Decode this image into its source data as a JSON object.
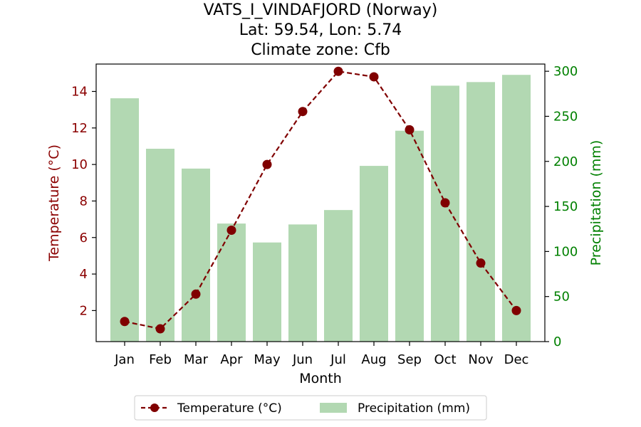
{
  "chart_data": {
    "type": "bar",
    "title_lines": [
      "VATS_I_VINDAFJORD (Norway)",
      "Lat: 59.54, Lon: 5.74",
      "Climate zone: Cfb"
    ],
    "xlabel": "Month",
    "ylabel_left": "Temperature (°C)",
    "ylabel_right": "Precipitation (mm)",
    "categories": [
      "Jan",
      "Feb",
      "Mar",
      "Apr",
      "May",
      "Jun",
      "Jul",
      "Aug",
      "Sep",
      "Oct",
      "Nov",
      "Dec"
    ],
    "series": [
      {
        "name": "Temperature (°C)",
        "type": "line",
        "axis": "left",
        "color": "#800000",
        "values": [
          1.4,
          1.0,
          2.9,
          6.4,
          10.0,
          12.9,
          15.1,
          14.8,
          11.9,
          7.9,
          4.6,
          2.0
        ]
      },
      {
        "name": "Precipitation (mm)",
        "type": "bar",
        "axis": "right",
        "color": "#b2d8b2",
        "values": [
          270,
          214,
          192,
          131,
          110,
          130,
          146,
          195,
          234,
          284,
          288,
          296
        ]
      }
    ],
    "ylim_left": [
      0.3,
      15.5
    ],
    "yticks_left": [
      "2",
      "4",
      "6",
      "8",
      "10",
      "12",
      "14"
    ],
    "ylim_right": [
      0,
      308
    ],
    "yticks_right": [
      "0",
      "50",
      "100",
      "150",
      "200",
      "250",
      "300"
    ],
    "left_axis_color": "#8b0000",
    "right_axis_color": "#008000",
    "legend_position": "bottom-center",
    "grid": false
  }
}
